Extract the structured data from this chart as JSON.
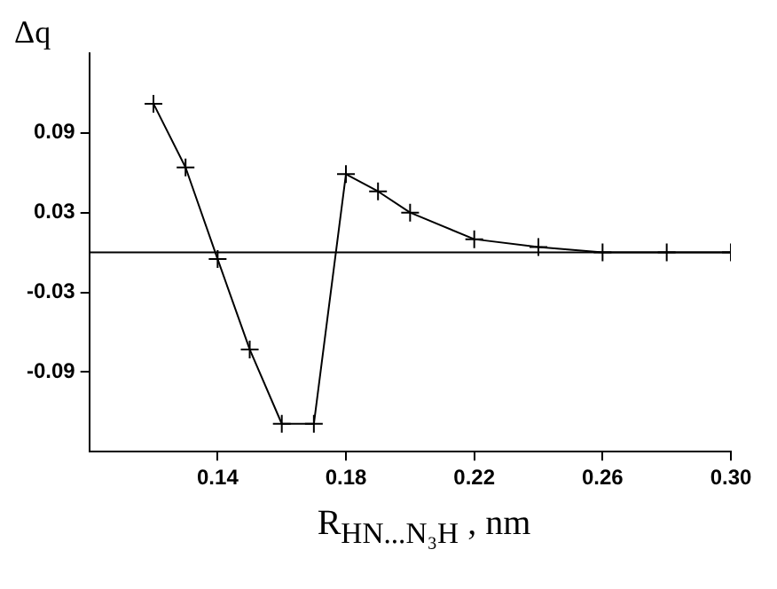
{
  "chart_data": {
    "type": "line",
    "ylabel": "Δq",
    "xlabel": "R$_{HN...N₃H}$ , nm",
    "x": [
      0.12,
      0.13,
      0.14,
      0.15,
      0.16,
      0.17,
      0.18,
      0.19,
      0.2,
      0.22,
      0.24,
      0.26,
      0.28,
      0.3
    ],
    "series": [
      {
        "color": "#000000",
        "values": [
          0.112,
          0.064,
          -0.005,
          -0.073,
          -0.129,
          -0.129,
          0.059,
          0.046,
          0.03,
          0.01,
          0.004,
          0.0,
          0.0,
          0.0
        ]
      }
    ],
    "xlim": [
      0.1,
      0.3
    ],
    "xticks": [
      0.14,
      0.18,
      0.22,
      0.26,
      {
        "value": 0.3,
        "label": "0.30"
      }
    ],
    "ylim": [
      -0.15,
      0.15
    ],
    "yticks": [
      0.09,
      0.03,
      -0.03,
      -0.09
    ],
    "ref_lines": [
      {
        "axis": "y",
        "value": 0,
        "color": "#000000"
      }
    ],
    "grid": false,
    "legend": false,
    "marker": "cross",
    "line_style": "solid"
  }
}
